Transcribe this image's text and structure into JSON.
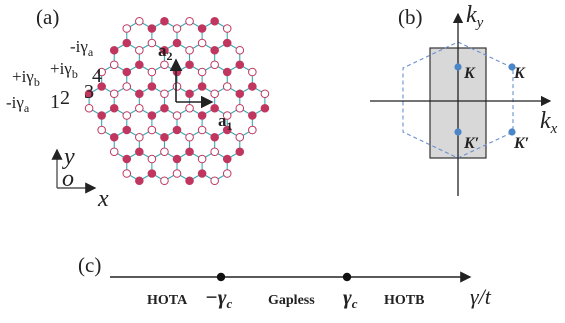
{
  "panel_a": {
    "label": "(a)",
    "couplings": {
      "top": "-iγ",
      "top_sub": "a",
      "left_upper": "+iγ",
      "left_upper_sub": "b",
      "left_lower": "-iγ",
      "left_lower_sub": "a",
      "mid": "+iγ",
      "mid_sub": "b"
    },
    "site_numbers": [
      "1",
      "2",
      "3",
      "4"
    ],
    "vector_a1": "a",
    "vector_a1_sub": "1",
    "vector_a2": "a",
    "vector_a2_sub": "2",
    "axis_y": "y",
    "axis_origin": "o",
    "axis_x": "x",
    "colors": {
      "bond": "#3aa8b4",
      "filled_site": "#c0365f",
      "open_site_edge": "#c0365f",
      "open_site_fill": "#ffffff"
    }
  },
  "panel_b": {
    "label": "(b)",
    "ky": "k",
    "ky_sub": "y",
    "kx": "k",
    "kx_sub": "x",
    "points": [
      "K",
      "K",
      "K′",
      "K′"
    ],
    "colors": {
      "bz_fill": "#d8d8d8",
      "hexagon": "#6a8fd0",
      "point": "#4a86c8"
    }
  },
  "panel_c": {
    "label": "(c)",
    "left_phase": "HOTA",
    "left_tick": "−γ",
    "left_tick_sub": "c",
    "middle_phase": "Gapless",
    "right_tick": "γ",
    "right_tick_sub": "c",
    "right_phase": "HOTB",
    "axis_label": "γ/t"
  }
}
